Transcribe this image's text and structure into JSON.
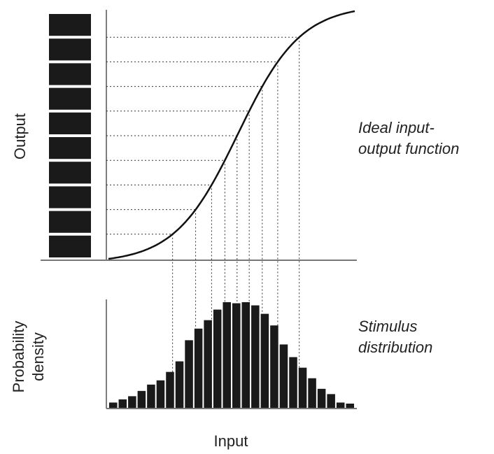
{
  "labels": {
    "output": "Output",
    "input": "Input",
    "probability_density": [
      "Probability",
      "density"
    ],
    "ideal_function": [
      "Ideal input-",
      "output function"
    ],
    "stimulus_distribution": [
      "Stimulus",
      "distribution"
    ]
  },
  "histogram": {
    "values": [
      5,
      8,
      11,
      16,
      22,
      26,
      34,
      44,
      64,
      75,
      83,
      93,
      100,
      99,
      100,
      97,
      89,
      78,
      60,
      48,
      38,
      28,
      18,
      13,
      5,
      4
    ]
  }
}
